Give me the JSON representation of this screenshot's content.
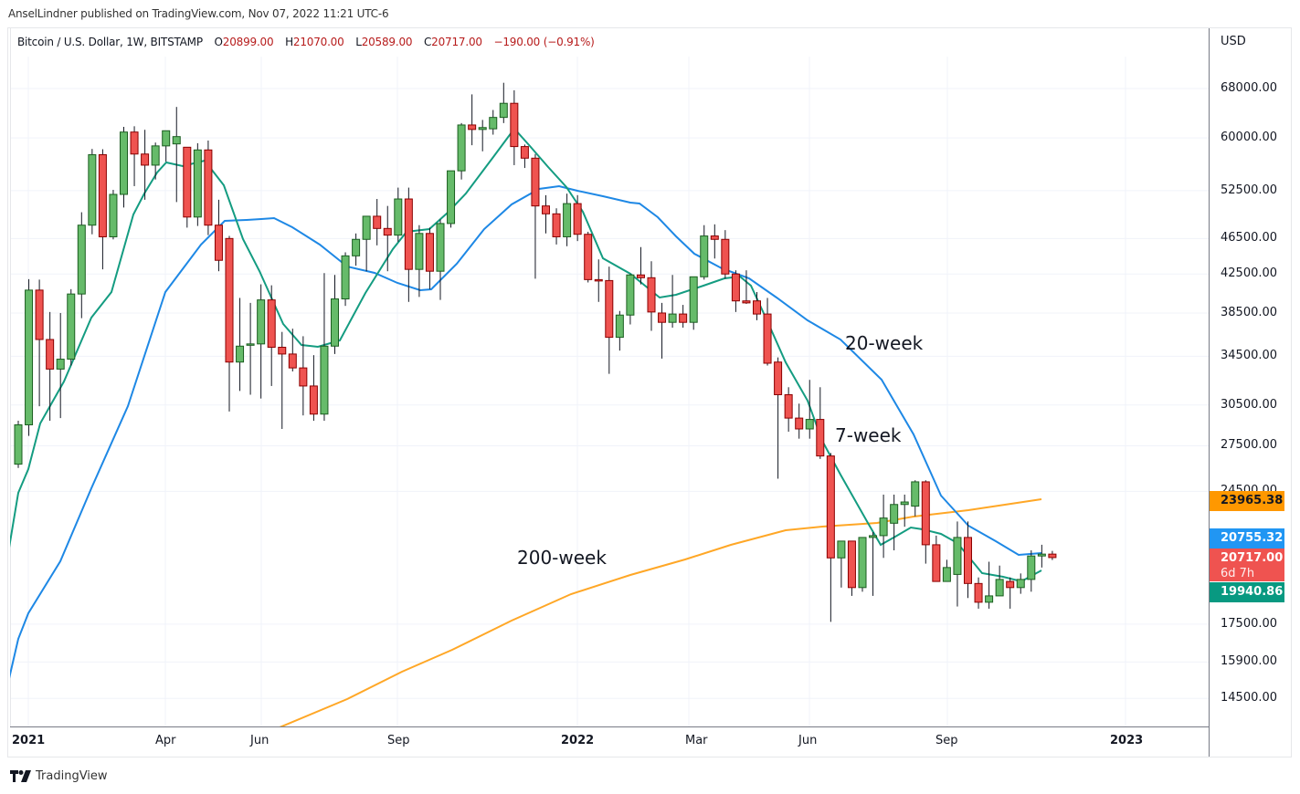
{
  "header": {
    "published": "AnselLindner published on TradingView.com, Nov 07, 2022 11:21 UTC-6"
  },
  "legend": {
    "symbol": "Bitcoin / U.S. Dollar, 1W, BITSTAMP",
    "open_label": "O",
    "open": "20899.00",
    "high_label": "H",
    "high": "21070.00",
    "low_label": "L",
    "low": "20589.00",
    "close_label": "C",
    "close": "20717.00",
    "change": "−190.00 (−0.91%)"
  },
  "price_axis": {
    "currency": "USD",
    "ticks": [
      "68000.00",
      "60000.00",
      "52500.00",
      "46500.00",
      "42500.00",
      "38500.00",
      "34500.00",
      "30500.00",
      "27500.00",
      "24500.00",
      "17500.00",
      "15900.00",
      "14500.00"
    ],
    "badges": [
      {
        "label": "23965.38",
        "color": "#ff9800",
        "text_color": "#131722"
      },
      {
        "label": "20755.32",
        "color": "#2196f3",
        "text_color": "#ffffff"
      },
      {
        "label": "20717.00",
        "sub": "6d 7h",
        "color": "#ef5350",
        "text_color": "#ffffff"
      },
      {
        "label": "19940.86",
        "color": "#089981",
        "text_color": "#ffffff"
      }
    ]
  },
  "time_axis": {
    "labels": [
      {
        "text": "2021",
        "bold": true
      },
      {
        "text": "Apr",
        "bold": false
      },
      {
        "text": "Jun",
        "bold": false
      },
      {
        "text": "Sep",
        "bold": false
      },
      {
        "text": "2022",
        "bold": true
      },
      {
        "text": "Mar",
        "bold": false
      },
      {
        "text": "Jun",
        "bold": false
      },
      {
        "text": "Sep",
        "bold": false
      },
      {
        "text": "2023",
        "bold": true
      }
    ]
  },
  "annotations": {
    "ma20": "20-week",
    "ma7": "7-week",
    "ma200": "200-week"
  },
  "footer": {
    "brand": "TradingView"
  },
  "colors": {
    "up": "#66bb6a",
    "up_border": "#1b5e20",
    "down": "#ef5350",
    "down_border": "#8b0000",
    "ma7": "#149c81",
    "ma20": "#1e88e5",
    "ma200": "#ffa726"
  },
  "chart_data": {
    "type": "candlestick",
    "title": "Bitcoin / U.S. Dollar, 1W, BITSTAMP",
    "xlabel": "",
    "ylabel": "USD",
    "y_scale": "log",
    "ylim": [
      13200,
      76000
    ],
    "grid": true,
    "week_start": "2020-12-28",
    "candles": [
      [
        26250,
        29300,
        26000,
        29000
      ],
      [
        29000,
        41950,
        28200,
        40800
      ],
      [
        40800,
        41900,
        30400,
        36000
      ],
      [
        36000,
        38600,
        29300,
        33400
      ],
      [
        33400,
        38500,
        29500,
        34250
      ],
      [
        34250,
        40900,
        33700,
        40400
      ],
      [
        40400,
        49700,
        38000,
        48100
      ],
      [
        48100,
        58350,
        47000,
        57500
      ],
      [
        57500,
        58300,
        43000,
        46700
      ],
      [
        46700,
        52600,
        46400,
        52000
      ],
      [
        52000,
        61700,
        50300,
        60900
      ],
      [
        60900,
        61800,
        53100,
        57600
      ],
      [
        57600,
        61250,
        51300,
        56000
      ],
      [
        56000,
        59300,
        54000,
        58800
      ],
      [
        58800,
        60000,
        56500,
        61100
      ],
      [
        59100,
        64900,
        51000,
        60200
      ],
      [
        58600,
        58600,
        47800,
        49100
      ],
      [
        49100,
        59200,
        48000,
        58200
      ],
      [
        58200,
        59600,
        46900,
        48100
      ],
      [
        48100,
        51300,
        42800,
        44000
      ],
      [
        46500,
        46800,
        30000,
        34000
      ],
      [
        34000,
        40000,
        31600,
        35400
      ],
      [
        35500,
        39500,
        31300,
        35600
      ],
      [
        35600,
        41400,
        31000,
        39800
      ],
      [
        39800,
        41300,
        32000,
        35300
      ],
      [
        35300,
        36700,
        28700,
        34700
      ],
      [
        34700,
        37000,
        33200,
        33500
      ],
      [
        33500,
        36300,
        29700,
        32000
      ],
      [
        32000,
        34600,
        29300,
        29800
      ],
      [
        29800,
        42600,
        29300,
        35400
      ],
      [
        35400,
        42400,
        34700,
        39900
      ],
      [
        39900,
        44900,
        39200,
        44500
      ],
      [
        44500,
        47100,
        43400,
        46400
      ],
      [
        46400,
        48500,
        42800,
        49200
      ],
      [
        49200,
        51400,
        45700,
        47700
      ],
      [
        47700,
        50500,
        42800,
        46900
      ],
      [
        46900,
        52900,
        46100,
        51400
      ],
      [
        51400,
        52900,
        39600,
        43000
      ],
      [
        43000,
        48100,
        40100,
        47100
      ],
      [
        47100,
        47800,
        40900,
        42800
      ],
      [
        42800,
        48800,
        39800,
        48300
      ],
      [
        48300,
        54900,
        47800,
        55200
      ],
      [
        55200,
        62300,
        54000,
        62000
      ],
      [
        62000,
        67000,
        58900,
        61300
      ],
      [
        61300,
        62800,
        58000,
        61600
      ],
      [
        61400,
        64400,
        60500,
        63200
      ],
      [
        63200,
        69000,
        62300,
        65500
      ],
      [
        65500,
        67700,
        56000,
        58700
      ],
      [
        58700,
        59000,
        55600,
        57000
      ],
      [
        57000,
        57600,
        42000,
        50500
      ],
      [
        50500,
        51900,
        47100,
        49500
      ],
      [
        49500,
        50200,
        45800,
        46700
      ],
      [
        46700,
        52100,
        45600,
        50800
      ],
      [
        50800,
        51900,
        46200,
        47000
      ],
      [
        47000,
        47300,
        41600,
        41900
      ],
      [
        41900,
        44100,
        39600,
        41800
      ],
      [
        41800,
        43300,
        33000,
        36200
      ],
      [
        36200,
        38700,
        35000,
        38300
      ],
      [
        38300,
        42500,
        37400,
        42400
      ],
      [
        42400,
        45500,
        41400,
        42100
      ],
      [
        42100,
        43900,
        36800,
        38600
      ],
      [
        38500,
        39500,
        34300,
        37600
      ],
      [
        37600,
        42400,
        37100,
        38400
      ],
      [
        38400,
        39300,
        37100,
        37600
      ],
      [
        37600,
        42100,
        36900,
        42200
      ],
      [
        42200,
        48100,
        41900,
        46800
      ],
      [
        46800,
        48200,
        44200,
        46400
      ],
      [
        46400,
        47500,
        42000,
        42500
      ],
      [
        42500,
        42900,
        38600,
        39700
      ],
      [
        39700,
        42900,
        39400,
        39500
      ],
      [
        39700,
        40600,
        37800,
        38400
      ],
      [
        38400,
        40000,
        33700,
        33900
      ],
      [
        34000,
        34400,
        25300,
        31300
      ],
      [
        31300,
        31900,
        28500,
        29500
      ],
      [
        29500,
        30600,
        28000,
        28700
      ],
      [
        28700,
        32500,
        28000,
        29400
      ],
      [
        29400,
        31900,
        26600,
        26800
      ],
      [
        26800,
        27000,
        17600,
        20700
      ],
      [
        20700,
        21600,
        19200,
        21600
      ],
      [
        21600,
        21600,
        18800,
        19200
      ],
      [
        19200,
        21500,
        19000,
        21800
      ],
      [
        21800,
        22100,
        18800,
        21900
      ],
      [
        21900,
        24300,
        20700,
        22900
      ],
      [
        22600,
        24300,
        21100,
        23700
      ],
      [
        23700,
        24300,
        22400,
        23850
      ],
      [
        23600,
        25200,
        23000,
        25100
      ],
      [
        25100,
        25200,
        20400,
        21400
      ],
      [
        21400,
        21900,
        19500,
        19500
      ],
      [
        19500,
        20600,
        19500,
        20200
      ],
      [
        19850,
        22700,
        18300,
        21800
      ],
      [
        21800,
        22700,
        18700,
        19400
      ],
      [
        19400,
        19700,
        18200,
        18500
      ],
      [
        18500,
        20500,
        18200,
        18800
      ],
      [
        18800,
        20300,
        19000,
        19600
      ],
      [
        19500,
        19700,
        18200,
        19200
      ],
      [
        19200,
        19900,
        18900,
        19600
      ],
      [
        19600,
        21100,
        19000,
        20800
      ],
      [
        20800,
        21400,
        20200,
        20900
      ],
      [
        20899,
        21070,
        20589,
        20717
      ]
    ],
    "series": [
      {
        "name": "7-week MA",
        "color": "#149c81"
      },
      {
        "name": "20-week MA",
        "color": "#1e88e5"
      },
      {
        "name": "200-week MA",
        "color": "#ffa726"
      }
    ],
    "last_values": {
      "ma200": 23965.38,
      "ma20": 20755.32,
      "close": 20717.0,
      "ma7": 19940.86
    }
  }
}
